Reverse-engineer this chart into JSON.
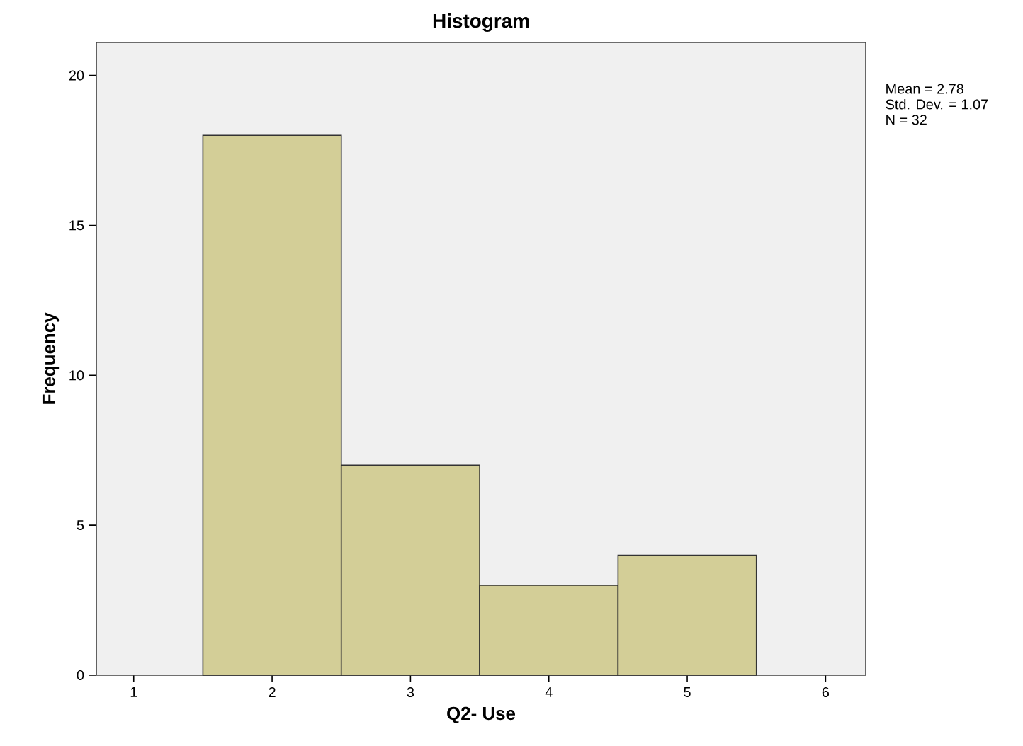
{
  "chart_data": {
    "type": "histogram",
    "title": "Histogram",
    "xlabel": "Q2- Use",
    "ylabel": "Frequency",
    "bins": [
      1.5,
      2.5,
      3.5,
      4.5,
      5.5
    ],
    "values": [
      18,
      7,
      3,
      4
    ],
    "color": "#d3ce97",
    "xlim": [
      0.73,
      6.29
    ],
    "xticks": [
      1,
      2,
      3,
      4,
      5,
      6
    ],
    "ylim": [
      0,
      21.1
    ],
    "yticks": [
      0,
      5,
      10,
      15,
      20
    ],
    "grid": false,
    "annotations": [
      "Mean = 2.78",
      "Std. Dev. = 1.07",
      "N = 32"
    ]
  }
}
